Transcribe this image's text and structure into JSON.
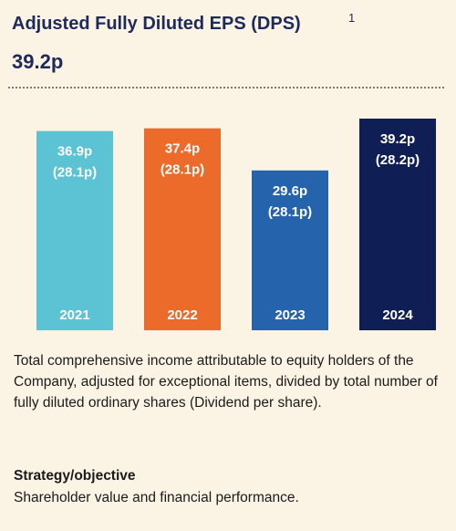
{
  "header": {
    "title": "Adjusted Fully Diluted EPS (DPS)",
    "footnote": "1",
    "headline_value": "39.2p"
  },
  "chart_data": {
    "type": "bar",
    "categories": [
      "2021",
      "2022",
      "2023",
      "2024"
    ],
    "series": [
      {
        "values": [
          36.9,
          37.4,
          29.6,
          39.2
        ]
      }
    ],
    "value_labels": [
      "36.9p",
      "37.4p",
      "29.6p",
      "39.2p"
    ],
    "dps_labels": [
      "(28.1p)",
      "(28.1p)",
      "(28.1p)",
      "(28.2p)"
    ],
    "colors": [
      "#5bc3d3",
      "#ec6a2a",
      "#2563ad",
      "#0f1f55"
    ],
    "ylim": [
      0,
      39.2
    ],
    "grid": false
  },
  "description": {
    "text": "Total comprehensive income attributable to equity holders of the Company, adjusted for exceptional items, divided by total number of fully diluted ordinary shares (Dividend per share)."
  },
  "strategy": {
    "heading": "Strategy/objective",
    "text": "Shareholder value and financial performance."
  }
}
